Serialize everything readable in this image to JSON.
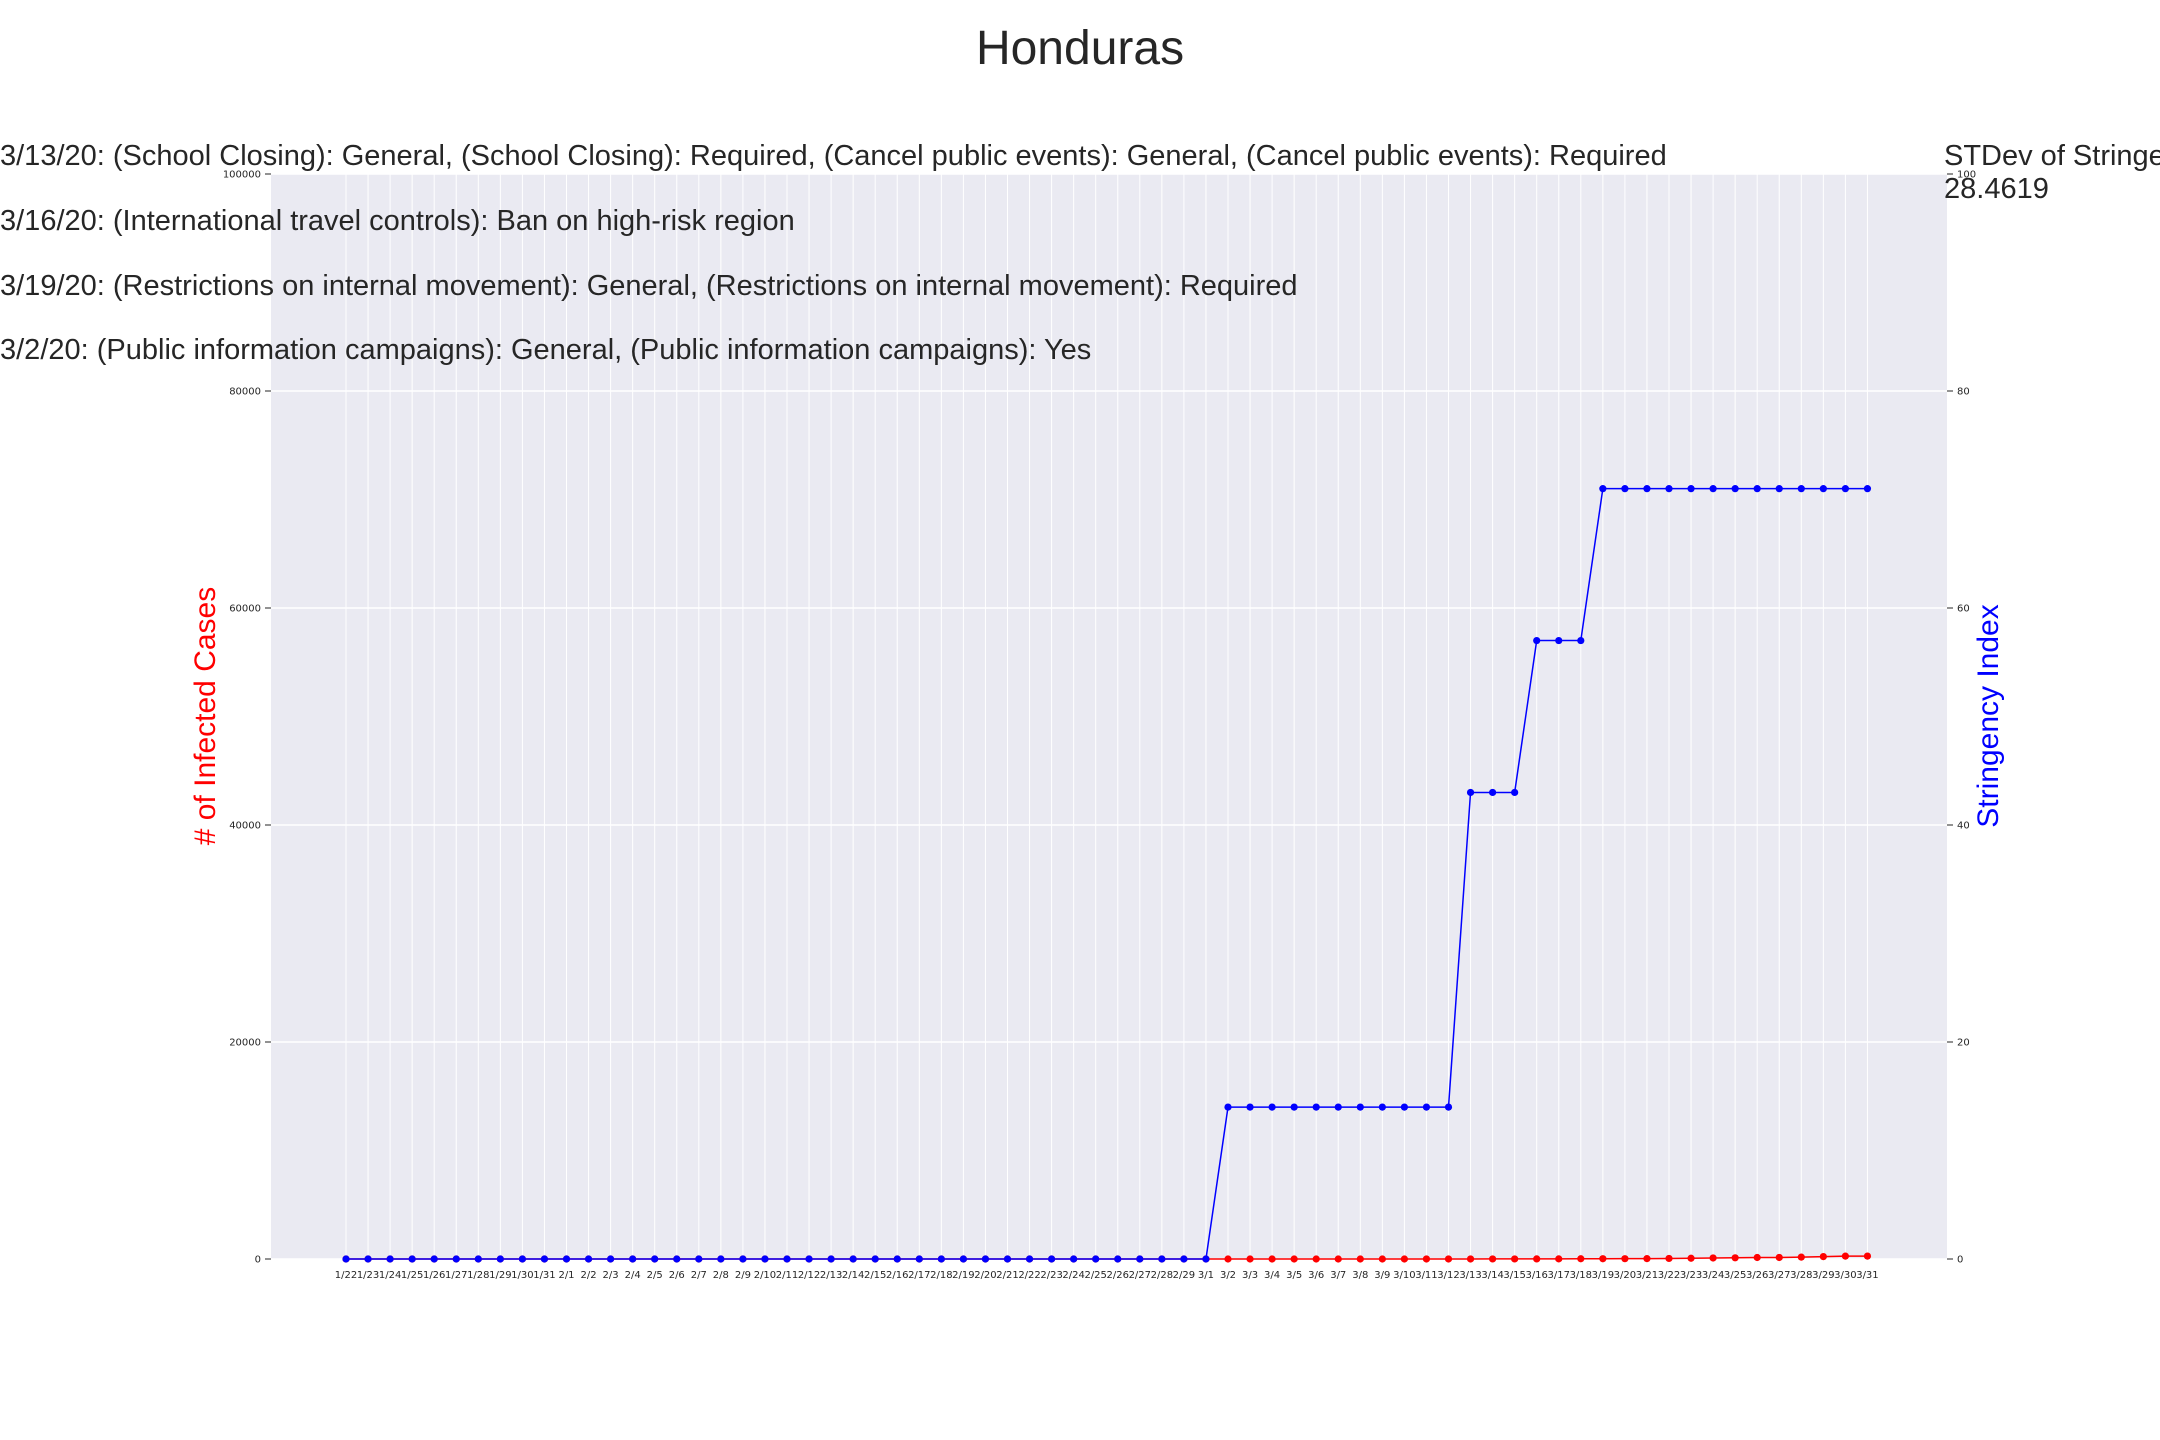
{
  "chart_data": {
    "type": "line",
    "title": "Honduras",
    "ylabel_left": "# of Infected Cases",
    "ylabel_right": "Stringency Index",
    "ylim_left": [
      0,
      100000
    ],
    "ylim_right": [
      0,
      100
    ],
    "yticks_left": [
      0,
      20000,
      40000,
      60000,
      80000,
      100000
    ],
    "yticks_right": [
      0,
      20,
      40,
      60,
      80,
      100
    ],
    "grid": true,
    "colors": {
      "cases": "#ff0000",
      "stringency": "#0000ff",
      "plot_bg": "#eaeaf2",
      "grid": "#ffffff"
    },
    "categories": [
      "1/22",
      "1/23",
      "1/24",
      "1/25",
      "1/26",
      "1/27",
      "1/28",
      "1/29",
      "1/30",
      "1/31",
      "2/1",
      "2/2",
      "2/3",
      "2/4",
      "2/5",
      "2/6",
      "2/7",
      "2/8",
      "2/9",
      "2/10",
      "2/11",
      "2/12",
      "2/13",
      "2/14",
      "2/15",
      "2/16",
      "2/17",
      "2/18",
      "2/19",
      "2/20",
      "2/21",
      "2/22",
      "2/23",
      "2/24",
      "2/25",
      "2/26",
      "2/27",
      "2/28",
      "2/29",
      "3/1",
      "3/2",
      "3/3",
      "3/4",
      "3/5",
      "3/6",
      "3/7",
      "3/8",
      "3/9",
      "3/10",
      "3/11",
      "3/12",
      "3/13",
      "3/14",
      "3/15",
      "3/16",
      "3/17",
      "3/18",
      "3/19",
      "3/20",
      "3/21",
      "3/22",
      "3/23",
      "3/24",
      "3/25",
      "3/26",
      "3/27",
      "3/28",
      "3/29",
      "3/30",
      "3/31"
    ],
    "series": [
      {
        "key": "cases",
        "axis": "left",
        "values": [
          0,
          0,
          0,
          0,
          0,
          0,
          0,
          0,
          0,
          0,
          0,
          0,
          0,
          0,
          0,
          0,
          0,
          0,
          0,
          0,
          0,
          0,
          0,
          0,
          0,
          0,
          0,
          0,
          0,
          0,
          0,
          0,
          0,
          0,
          0,
          0,
          0,
          0,
          0,
          0,
          0,
          0,
          0,
          0,
          0,
          0,
          0,
          0,
          0,
          2,
          2,
          3,
          6,
          8,
          9,
          12,
          24,
          26,
          30,
          36,
          52,
          68,
          95,
          110,
          139,
          141,
          172,
          222,
          264,
          268
        ]
      },
      {
        "key": "stringency",
        "axis": "right",
        "values": [
          0,
          0,
          0,
          0,
          0,
          0,
          0,
          0,
          0,
          0,
          0,
          0,
          0,
          0,
          0,
          0,
          0,
          0,
          0,
          0,
          0,
          0,
          0,
          0,
          0,
          0,
          0,
          0,
          0,
          0,
          0,
          0,
          0,
          0,
          0,
          0,
          0,
          0,
          0,
          0,
          14,
          14,
          14,
          14,
          14,
          14,
          14,
          14,
          14,
          14,
          14,
          43,
          43,
          43,
          57,
          57,
          57,
          71,
          71,
          71,
          71,
          71,
          71,
          71,
          71,
          71,
          71,
          71,
          71,
          71
        ]
      }
    ],
    "annotations": [
      "3/13/20: (School Closing): General, (School Closing): Required, (Cancel public events): General, (Cancel public events): Required",
      "3/16/20: (International travel controls): Ban on high-risk region",
      "3/19/20: (Restrictions on internal movement): General, (Restrictions on internal movement): Required",
      "3/2/20: (Public information campaigns): General, (Public information campaigns): Yes"
    ],
    "stdev_label": "STDev of Stringency",
    "stdev_value": "28.4619"
  }
}
